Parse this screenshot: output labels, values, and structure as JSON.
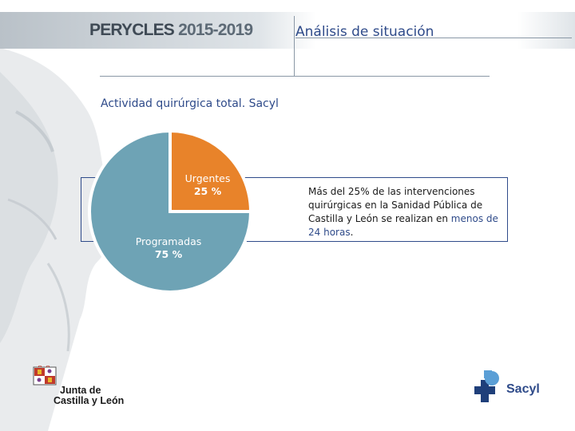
{
  "header": {
    "brand": "PERYCLES",
    "brand_years": "2015-2019",
    "section_title": "Análisis de situación"
  },
  "chart_data": {
    "type": "pie",
    "title": "Actividad quirúrgica total. Sacyl",
    "categories": [
      "Urgentes",
      "Programadas"
    ],
    "values": [
      25,
      75
    ],
    "labels": [
      "25 %",
      "75 %"
    ],
    "colors": [
      "#e8832a",
      "#6ea3b5"
    ]
  },
  "note": {
    "text_before": "Más del 25% de las intervenciones quirúrgicas en la Sanidad Pública de Castilla y León se realizan en ",
    "highlight": "menos de 24 horas",
    "text_after": "."
  },
  "logos": {
    "jcyl_line1": "Junta de",
    "jcyl_line2": "Castilla y León",
    "sacyl": "Sacyl"
  },
  "colors": {
    "accent_blue": "#2f4b8a",
    "urgentes": "#e8832a",
    "programadas": "#6ea3b5"
  },
  "icons": [
    "statue-background-image",
    "jcyl-coat-of-arms-icon",
    "sacyl-cross-icon"
  ]
}
